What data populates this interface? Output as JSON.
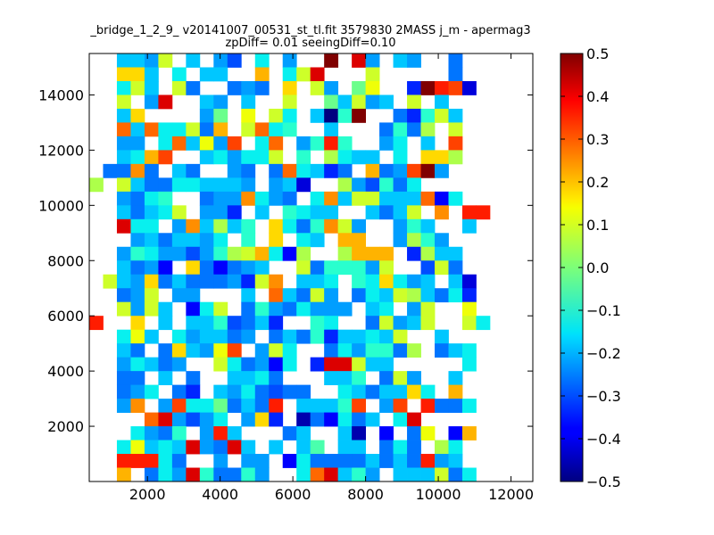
{
  "chart_data": {
    "type": "heatmap",
    "title": "_bridge_1_2_9_ v20141007_00531_st_tl.fit 3579830 2MASS j_m - apermag3",
    "subtitle": "zpDiff= 0.01 seeingDiff=0.10",
    "xlabel": "",
    "ylabel": "",
    "xlim": [
      400,
      12600
    ],
    "ylim": [
      0,
      15500
    ],
    "x_ticks": [
      "2000",
      "4000",
      "6000",
      "8000",
      "10000",
      "12000"
    ],
    "x_tick_values": [
      2000,
      4000,
      6000,
      8000,
      10000,
      12000
    ],
    "y_ticks": [
      "2000",
      "4000",
      "6000",
      "8000",
      "10000",
      "12000",
      "14000"
    ],
    "y_tick_values": [
      2000,
      4000,
      6000,
      8000,
      10000,
      12000,
      14000
    ],
    "colormap": "jet",
    "clim": [
      -0.5,
      0.5
    ],
    "colorbar_ticks": [
      "0.5",
      "0.4",
      "0.3",
      "0.2",
      "0.1",
      "0.0",
      "−0.1",
      "−0.2",
      "−0.3",
      "−0.4",
      "−0.5"
    ],
    "colorbar_tick_values": [
      0.5,
      0.4,
      0.3,
      0.2,
      0.1,
      0.0,
      -0.1,
      -0.2,
      -0.3,
      -0.4,
      -0.5
    ],
    "grid": false,
    "x_bin_origin": 400,
    "x_bin_width": 380,
    "y_bin_origin": 0,
    "y_bin_height": 500,
    "rows": [
      "..V.CGG.H...XGK..PX.HXC..G...",
      "..PHR.G.GX..XH....J.W.....D..",
      "..IIKXG.J..GH.J.UMK.A..LV.QW.",
      "..IIHP.I.HF.J.H..Z.XH.IH..G..",
      "..RRI.J.II..S.JPX...P.....G..",
      "..JPI.PG..GHG.R.PH.MQ..EZWVC.",
      "..P.HX..IH.I..P..MIPHI.P.I...",
      "..IR....HM.Q.PJ.IAKZ..GEKPI..",
      "..UIUJJPGS.PUJK..I...GKGO.P..",
      "..HH.JUIQHV.JU.HKWK..HJ.I.V..",
      "..IJSV..IJHJJP.K.OJII.J.RRO..",
      ".GGTG.IG..HG.GUJIEG.SGHVZH...",
      "O.PIGGJJIIIH.HIC..OHFKGJ.....",
      "..HGJK..GHHTJHG.JTIPPIIIUDJ..",
      "..IGIJP.HHE.I.KJII..IGIP.T.WW",
      "..XJJ.HTIOIK.RJGKTPH..HKI..I.",
      "...HIGIIHJ.K.R.JI.SS..HOKH...",
      "..HKJHHFHKOPSJDO..OSSS.EOII..",
      "..IGHD.RGDGHI..PGKKKHP..FPG..",
      ".PIHRGIGGGHEPT.IIJ.KJRJHI.IC.",
      "..GHP.HH...I.UIGPH.GJIPOIGJE.",
      "..PHPI.DJP.GKHGJHHH.IJ.HP..Q.",
      "W..R.I.IIKFGIE..KJ..GPHIP..PJ",
      "..JQI.JHIIGH.GIGKEIIJIP..I...",
      "..IG.GRIHQV.HPJ..GJHKKGO.GIJ.",
      "..HJIGH..PJGHDJ.EXXPII.....J.",
      "..GG.I.G..IIJG...IIK.GPH..I..",
      "..GHJ.GE.IHJGFGG..JIGIIRJ.S..",
      "..HT.HVJJMGIGW.IIIKV.HV.WGGJ.",
      "....UXHFHJ.HRE.BGDJGI.JX.....",
      "...JHGK.HWI...GI..IB.D.GQ.DS.",
      "..JQIJIXHGXI.I.IL.II.GJG.OJ..",
      "..WWWJG..H.HH.DJGGGGIGIGWHI..",
      "..S.GJHXKGGKH..JUXIKH.IIIPGJ."
    ]
  }
}
